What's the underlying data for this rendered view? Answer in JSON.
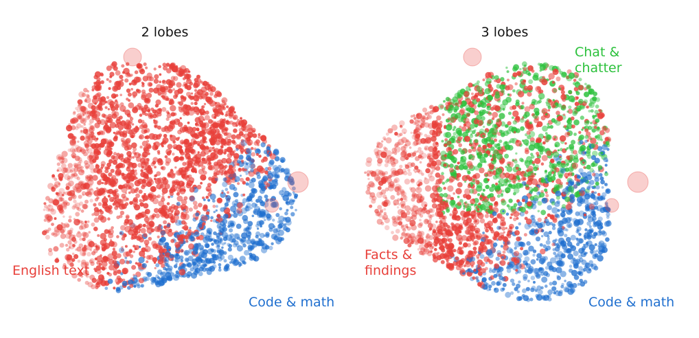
{
  "chart_data": [
    {
      "type": "scatter",
      "title": "2 lobes",
      "series": [
        {
          "color": "#e8403a"
        },
        {
          "color": "#1f6fcf"
        }
      ],
      "annotations": [
        {
          "text": "English text",
          "color": "#e8403a"
        },
        {
          "text": "Code & math",
          "color": "#1f6fcf"
        }
      ],
      "axes": "hidden",
      "grid": false
    },
    {
      "type": "scatter",
      "title": "3 lobes",
      "series": [
        {
          "color": "#e8403a"
        },
        {
          "color": "#2cc13c"
        },
        {
          "color": "#1f6fcf"
        }
      ],
      "annotations": [
        {
          "lines": [
            "Chat &",
            "chatter"
          ],
          "color": "#2cc13c"
        },
        {
          "lines": [
            "Facts &",
            "findings"
          ],
          "color": "#e8403a"
        },
        {
          "text": "Code & math",
          "color": "#1f6fcf"
        }
      ],
      "axes": "hidden",
      "grid": false
    }
  ]
}
